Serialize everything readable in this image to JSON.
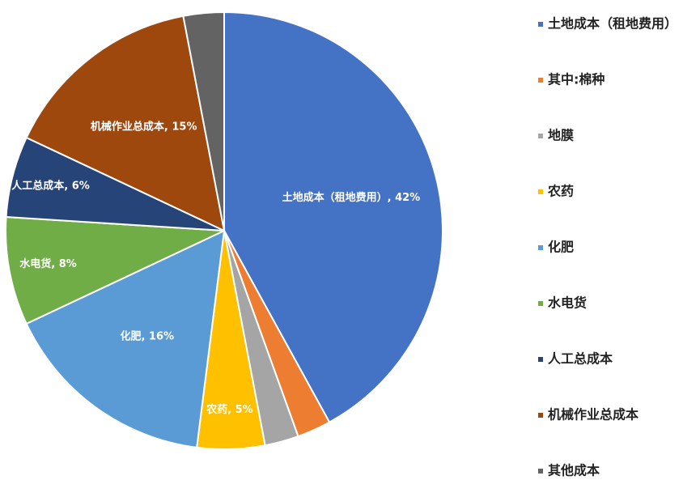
{
  "chart_data": {
    "type": "pie",
    "categories": [
      "土地成本（租地费用）",
      "其中:棉种",
      "地膜",
      "农药",
      "化肥",
      "水电货",
      "人工总成本",
      "机械作业总成本",
      "其他成本"
    ],
    "values": [
      42,
      2.5,
      2.5,
      5,
      16,
      8,
      6,
      15,
      3
    ],
    "value_labels": [
      "土地成本（租地费用）, 42%",
      null,
      null,
      "农药, 5%",
      "化肥, 16%",
      "水电货, 8%",
      "人工总成本, 6%",
      "机械作业总成本, 15%",
      null
    ],
    "colors": [
      "#4472c4",
      "#ed7d31",
      "#a5a5a5",
      "#ffc000",
      "#5b9bd5",
      "#70ad47",
      "#264478",
      "#9e480e",
      "#636363"
    ],
    "legend": "right"
  }
}
